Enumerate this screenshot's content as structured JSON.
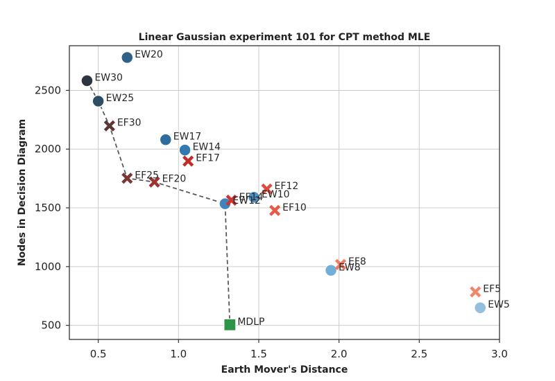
{
  "chart_data": {
    "type": "scatter",
    "title": "Linear Gaussian experiment 101 for CPT method MLE",
    "xlabel": "Earth Mover's Distance",
    "ylabel": "Nodes in Decision Diagram",
    "xlim": [
      0.32,
      3.0
    ],
    "ylim": [
      380,
      2880
    ],
    "xticks": [
      0.5,
      1.0,
      1.5,
      2.0,
      2.5,
      3.0
    ],
    "xtick_labels": [
      "0.5",
      "1.0",
      "1.5",
      "2.0",
      "2.5",
      "3.0"
    ],
    "yticks": [
      500,
      1000,
      1500,
      2000,
      2500
    ],
    "ytick_labels": [
      "500",
      "1000",
      "1500",
      "2000",
      "2500"
    ],
    "grid": true,
    "legend": "none",
    "series": [
      {
        "group": "EW",
        "marker": "circle",
        "points": [
          {
            "label": "EW5",
            "x": 2.88,
            "y": 650,
            "color": "#93c0de"
          },
          {
            "label": "EW8",
            "x": 1.95,
            "y": 968,
            "color": "#72aed8"
          },
          {
            "label": "EW10",
            "x": 1.47,
            "y": 1590,
            "color": "#4e92c5"
          },
          {
            "label": "EW12",
            "x": 1.29,
            "y": 1535,
            "color": "#3f84bd"
          },
          {
            "label": "EW14",
            "x": 1.04,
            "y": 1992,
            "color": "#3478b0"
          },
          {
            "label": "EW17",
            "x": 0.92,
            "y": 2080,
            "color": "#2e6d9e"
          },
          {
            "label": "EW20",
            "x": 0.68,
            "y": 2780,
            "color": "#2f6189"
          },
          {
            "label": "EW25",
            "x": 0.5,
            "y": 2408,
            "color": "#2e4d65"
          },
          {
            "label": "EW30",
            "x": 0.43,
            "y": 2582,
            "color": "#2d3540"
          }
        ]
      },
      {
        "group": "EF",
        "marker": "x",
        "points": [
          {
            "label": "EF5",
            "x": 2.85,
            "y": 785,
            "color": "#f0876d"
          },
          {
            "label": "EF8",
            "x": 2.01,
            "y": 1018,
            "color": "#ee7b5f"
          },
          {
            "label": "EF10",
            "x": 1.6,
            "y": 1478,
            "color": "#e65a48"
          },
          {
            "label": "EF12",
            "x": 1.55,
            "y": 1660,
            "color": "#de4c3f"
          },
          {
            "label": "EF14",
            "x": 1.33,
            "y": 1565,
            "color": "#cf3530"
          },
          {
            "label": "EF17",
            "x": 1.06,
            "y": 1898,
            "color": "#c12d29"
          },
          {
            "label": "EF20",
            "x": 0.85,
            "y": 1720,
            "color": "#9c3432"
          },
          {
            "label": "EF25",
            "x": 0.68,
            "y": 1752,
            "color": "#7c3634"
          },
          {
            "label": "EF30",
            "x": 0.57,
            "y": 2198,
            "color": "#5c3634"
          }
        ]
      },
      {
        "group": "MDLP",
        "marker": "square",
        "points": [
          {
            "label": "MDLP",
            "x": 1.32,
            "y": 505,
            "color": "#2e9448"
          }
        ]
      }
    ],
    "pareto_line": {
      "style": "dashed",
      "color": "#595959",
      "points": [
        {
          "x": 0.43,
          "y": 2582
        },
        {
          "x": 0.5,
          "y": 2408
        },
        {
          "x": 0.57,
          "y": 2198
        },
        {
          "x": 0.68,
          "y": 1752
        },
        {
          "x": 0.85,
          "y": 1720
        },
        {
          "x": 1.29,
          "y": 1535
        },
        {
          "x": 1.32,
          "y": 505
        }
      ]
    }
  }
}
